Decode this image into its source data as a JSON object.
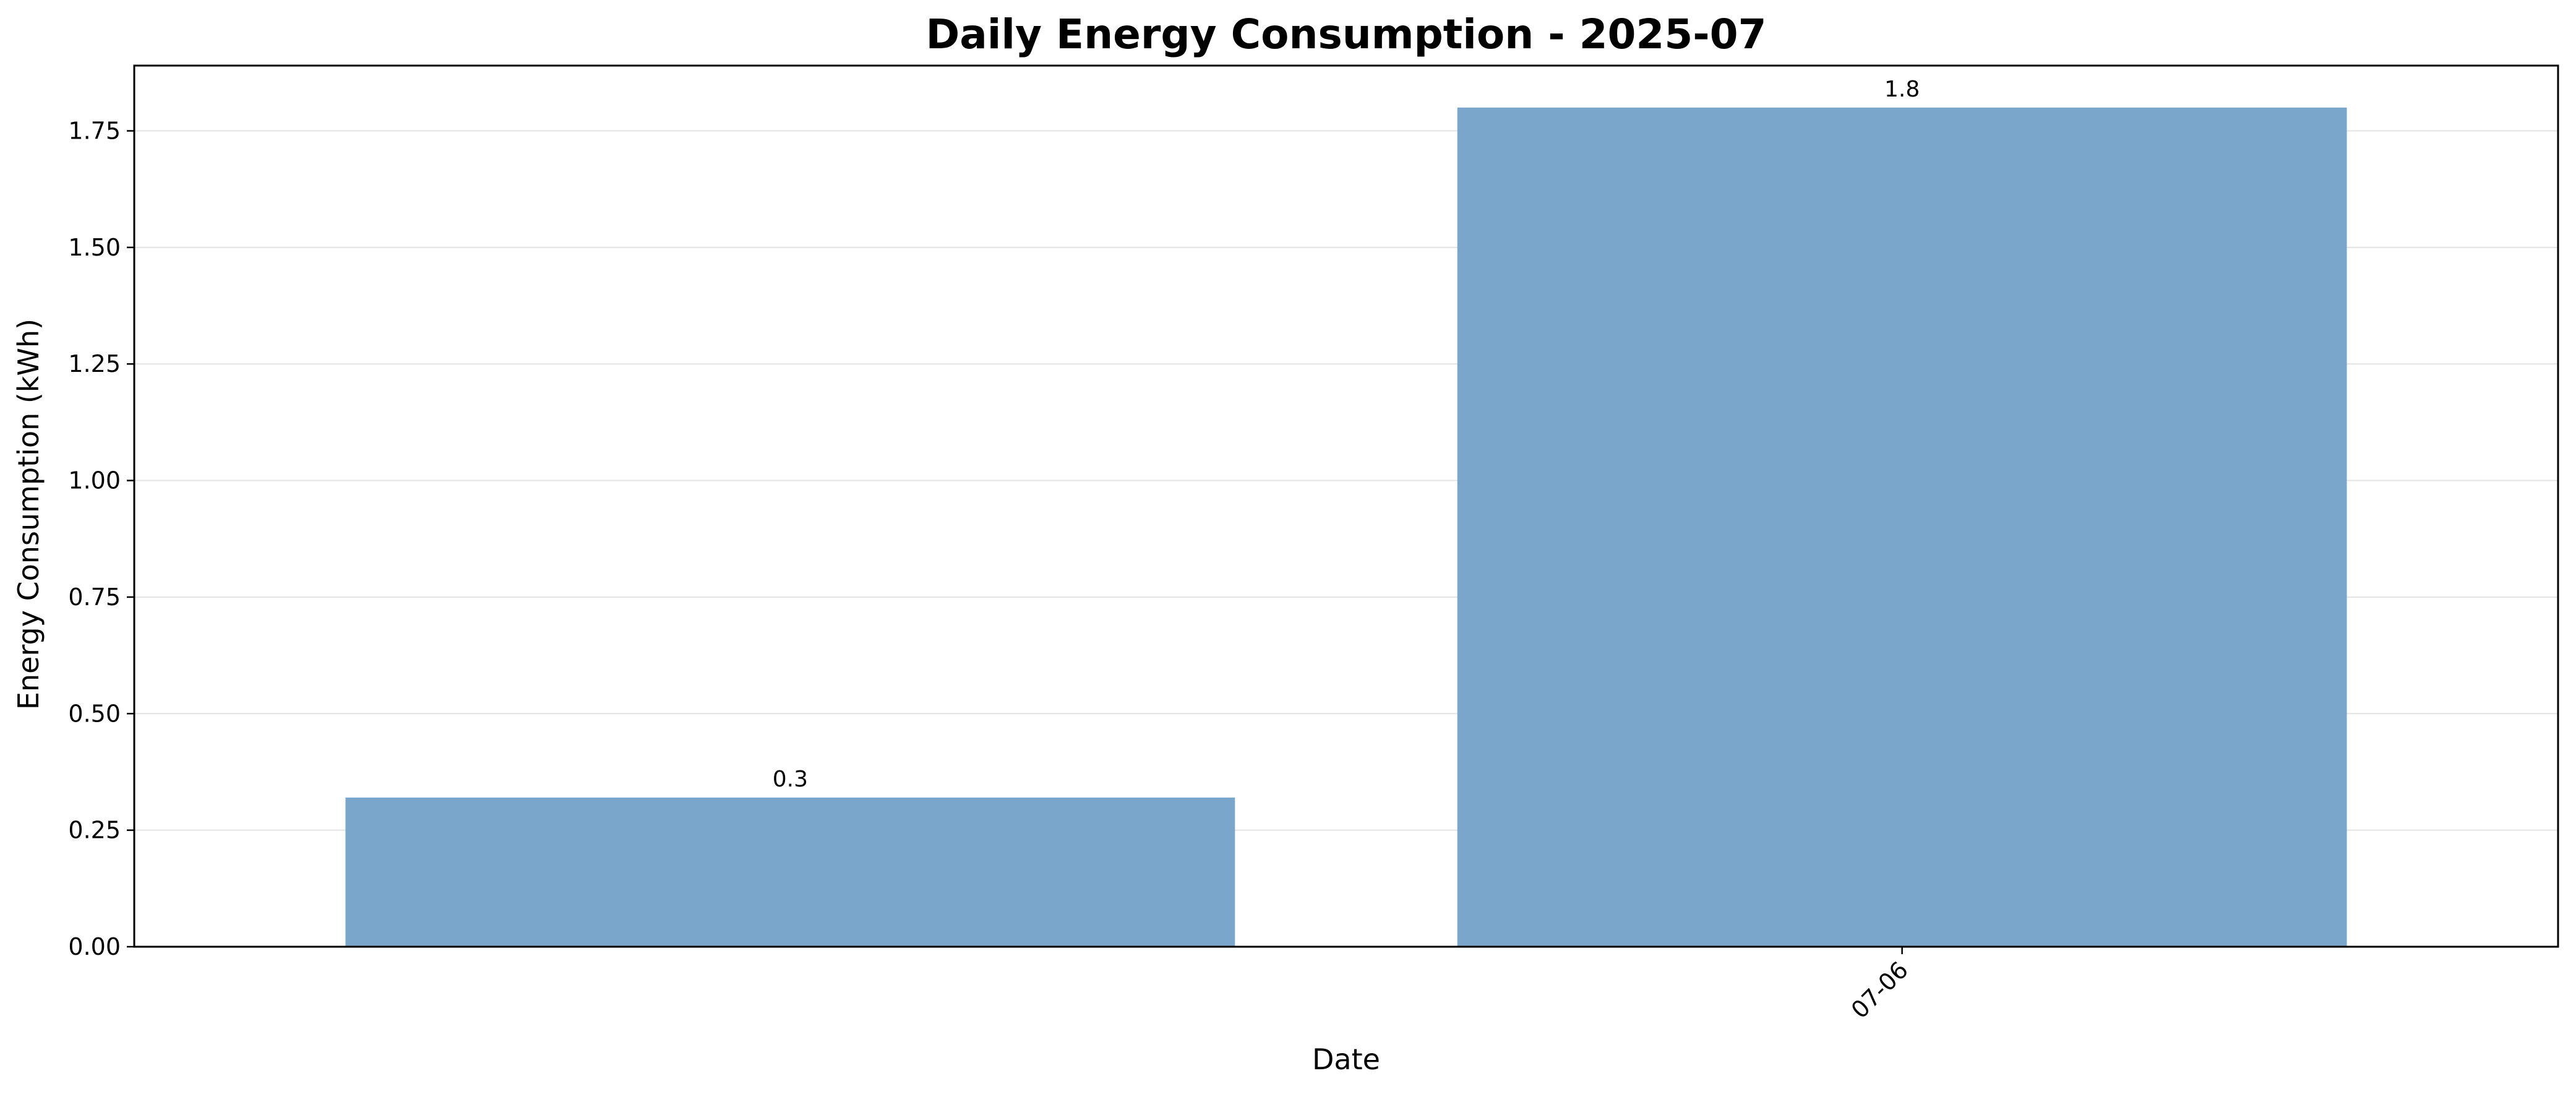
{
  "chart_data": {
    "type": "bar",
    "title": "Daily Energy Consumption - 2025-07",
    "xlabel": "Date",
    "ylabel": "Energy Consumption (kWh)",
    "categories": [
      "",
      "07-06"
    ],
    "values": [
      0.32,
      1.8
    ],
    "data_labels": [
      "0.3",
      "1.8"
    ],
    "ylim": [
      0,
      1.89
    ],
    "yticks": [
      "0.00",
      "0.25",
      "0.50",
      "0.75",
      "1.00",
      "1.25",
      "1.50",
      "1.75"
    ],
    "ytick_values": [
      0,
      0.25,
      0.5,
      0.75,
      1.0,
      1.25,
      1.5,
      1.75
    ],
    "grid": "y",
    "bar_color": "#7BA6CB"
  }
}
